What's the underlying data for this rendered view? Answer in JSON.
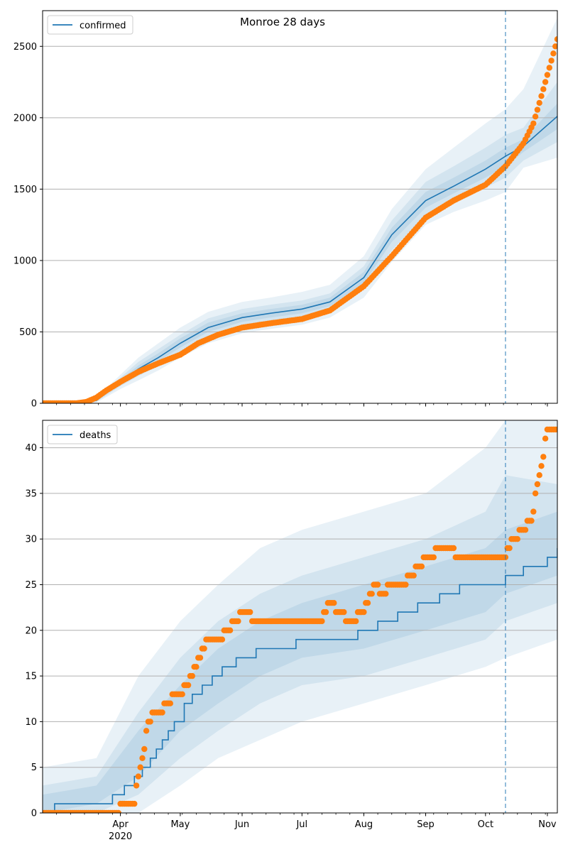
{
  "chart_data": [
    {
      "type": "line",
      "title": "Monroe 28 days",
      "xlabel": "",
      "ylabel": "",
      "x_range": [
        "2020-02-22",
        "2020-11-06"
      ],
      "ylim": [
        0,
        2750
      ],
      "y_ticks": [
        0,
        500,
        1000,
        1500,
        2000,
        2500
      ],
      "grid": "horizontal",
      "legend": "top-left",
      "vline_date": "2020-10-11",
      "series": [
        {
          "name": "confirmed",
          "kind": "line",
          "color": "#1f77b4",
          "x": [
            "2020-02-22",
            "2020-03-10",
            "2020-03-20",
            "2020-04-01",
            "2020-04-10",
            "2020-04-20",
            "2020-05-01",
            "2020-05-15",
            "2020-06-01",
            "2020-06-15",
            "2020-07-01",
            "2020-07-15",
            "2020-08-01",
            "2020-08-15",
            "2020-09-01",
            "2020-09-15",
            "2020-10-01",
            "2020-10-11",
            "2020-10-20",
            "2020-11-06"
          ],
          "values": [
            0,
            0,
            20,
            150,
            240,
            320,
            420,
            530,
            600,
            630,
            660,
            710,
            880,
            1180,
            1420,
            1520,
            1640,
            1730,
            1800,
            2010
          ]
        },
        {
          "name": "",
          "kind": "band",
          "color": "#1f77b4",
          "opacity": 0.1,
          "x": [
            "2020-02-22",
            "2020-03-10",
            "2020-03-20",
            "2020-04-01",
            "2020-04-10",
            "2020-04-20",
            "2020-05-01",
            "2020-05-15",
            "2020-06-01",
            "2020-06-15",
            "2020-07-01",
            "2020-07-15",
            "2020-08-01",
            "2020-08-15",
            "2020-09-01",
            "2020-09-15",
            "2020-10-01",
            "2020-10-11",
            "2020-10-20",
            "2020-11-06"
          ],
          "lower": [
            0,
            0,
            5,
            100,
            160,
            230,
            320,
            420,
            490,
            520,
            550,
            600,
            740,
            990,
            1250,
            1340,
            1420,
            1480,
            1650,
            1720
          ],
          "upper": [
            0,
            0,
            40,
            200,
            320,
            420,
            530,
            640,
            710,
            740,
            780,
            830,
            1030,
            1360,
            1640,
            1790,
            1960,
            2060,
            2200,
            2700
          ]
        },
        {
          "name": "",
          "kind": "band",
          "color": "#1f77b4",
          "opacity": 0.1,
          "x": [
            "2020-02-22",
            "2020-03-10",
            "2020-03-20",
            "2020-04-01",
            "2020-04-10",
            "2020-04-20",
            "2020-05-01",
            "2020-05-15",
            "2020-06-01",
            "2020-06-15",
            "2020-07-01",
            "2020-07-15",
            "2020-08-01",
            "2020-08-15",
            "2020-09-01",
            "2020-09-15",
            "2020-10-01",
            "2020-10-11",
            "2020-10-20",
            "2020-11-06"
          ],
          "lower": [
            0,
            0,
            10,
            120,
            190,
            265,
            360,
            465,
            540,
            570,
            600,
            650,
            800,
            1070,
            1320,
            1410,
            1510,
            1580,
            1700,
            1830
          ],
          "upper": [
            0,
            0,
            30,
            180,
            290,
            380,
            480,
            595,
            660,
            690,
            720,
            770,
            960,
            1280,
            1550,
            1660,
            1790,
            1880,
            1930,
            2250
          ]
        },
        {
          "name": "",
          "kind": "band",
          "color": "#1f77b4",
          "opacity": 0.1,
          "x": [
            "2020-02-22",
            "2020-03-10",
            "2020-03-20",
            "2020-04-01",
            "2020-04-10",
            "2020-04-20",
            "2020-05-01",
            "2020-05-15",
            "2020-06-01",
            "2020-06-15",
            "2020-07-01",
            "2020-07-15",
            "2020-08-01",
            "2020-08-15",
            "2020-09-01",
            "2020-09-15",
            "2020-10-01",
            "2020-10-11",
            "2020-10-20",
            "2020-11-06"
          ],
          "lower": [
            0,
            0,
            15,
            135,
            215,
            295,
            390,
            500,
            570,
            600,
            630,
            680,
            840,
            1130,
            1370,
            1470,
            1580,
            1660,
            1760,
            1920
          ],
          "upper": [
            0,
            0,
            25,
            165,
            265,
            350,
            455,
            565,
            630,
            660,
            690,
            740,
            920,
            1230,
            1480,
            1580,
            1700,
            1790,
            1850,
            2100
          ]
        },
        {
          "name": "",
          "kind": "scatter",
          "color": "#ff7f0e",
          "x": [
            "2020-02-22",
            "2020-03-01",
            "2020-03-10",
            "2020-03-15",
            "2020-03-20",
            "2020-03-25",
            "2020-04-01",
            "2020-04-10",
            "2020-04-20",
            "2020-05-01",
            "2020-05-10",
            "2020-05-20",
            "2020-06-01",
            "2020-06-15",
            "2020-07-01",
            "2020-07-15",
            "2020-08-01",
            "2020-08-15",
            "2020-09-01",
            "2020-09-15",
            "2020-10-01",
            "2020-10-11",
            "2020-10-20",
            "2020-10-25",
            "2020-10-30",
            "2020-11-06"
          ],
          "values": [
            0,
            0,
            0,
            10,
            40,
            90,
            150,
            220,
            280,
            340,
            420,
            480,
            530,
            560,
            590,
            650,
            820,
            1030,
            1300,
            1420,
            1530,
            1660,
            1820,
            1960,
            2200,
            2550
          ]
        }
      ]
    },
    {
      "type": "line",
      "title": "",
      "xlabel": "",
      "ylabel": "",
      "x_range": [
        "2020-02-22",
        "2020-11-06"
      ],
      "ylim": [
        0,
        43
      ],
      "y_ticks": [
        0,
        5,
        10,
        15,
        20,
        25,
        30,
        35,
        40
      ],
      "x_tick_labels": [
        "Apr",
        "May",
        "Jun",
        "Jul",
        "Aug",
        "Sep",
        "Oct",
        "Nov"
      ],
      "x_tick_dates": [
        "2020-04-01",
        "2020-05-01",
        "2020-06-01",
        "2020-07-01",
        "2020-08-01",
        "2020-09-01",
        "2020-10-01",
        "2020-11-01"
      ],
      "x_year_label": "2020",
      "grid": "horizontal",
      "legend": "top-left",
      "vline_date": "2020-10-11",
      "series": [
        {
          "name": "deaths",
          "kind": "step",
          "color": "#1f77b4",
          "x": [
            "2020-02-22",
            "2020-02-28",
            "2020-03-28",
            "2020-04-03",
            "2020-04-08",
            "2020-04-12",
            "2020-04-16",
            "2020-04-19",
            "2020-04-22",
            "2020-04-25",
            "2020-04-28",
            "2020-05-03",
            "2020-05-07",
            "2020-05-12",
            "2020-05-17",
            "2020-05-22",
            "2020-05-29",
            "2020-06-08",
            "2020-06-28",
            "2020-07-29",
            "2020-08-08",
            "2020-08-18",
            "2020-08-28",
            "2020-09-08",
            "2020-09-18",
            "2020-10-11",
            "2020-10-20",
            "2020-11-01",
            "2020-11-06"
          ],
          "values": [
            0,
            1,
            2,
            3,
            4,
            5,
            6,
            7,
            8,
            9,
            10,
            12,
            13,
            14,
            15,
            16,
            17,
            18,
            19,
            20,
            21,
            22,
            23,
            24,
            25,
            26,
            27,
            28,
            29
          ]
        },
        {
          "name": "",
          "kind": "band",
          "color": "#1f77b4",
          "opacity": 0.1,
          "x": [
            "2020-02-22",
            "2020-03-20",
            "2020-04-10",
            "2020-05-01",
            "2020-05-20",
            "2020-06-10",
            "2020-07-01",
            "2020-08-01",
            "2020-09-01",
            "2020-10-01",
            "2020-10-11",
            "2020-11-06"
          ],
          "lower": [
            0,
            0,
            0,
            3,
            6,
            8,
            10,
            12,
            14,
            16,
            17,
            19
          ],
          "upper": [
            5,
            6,
            15,
            21,
            25,
            29,
            31,
            33,
            35,
            40,
            43,
            44
          ]
        },
        {
          "name": "",
          "kind": "band",
          "color": "#1f77b4",
          "opacity": 0.1,
          "x": [
            "2020-02-22",
            "2020-03-20",
            "2020-04-10",
            "2020-05-01",
            "2020-05-20",
            "2020-06-10",
            "2020-07-01",
            "2020-08-01",
            "2020-09-01",
            "2020-10-01",
            "2020-10-11",
            "2020-11-06"
          ],
          "lower": [
            0,
            0,
            2,
            6,
            9,
            12,
            14,
            15,
            17,
            19,
            21,
            23
          ],
          "upper": [
            3,
            4,
            11,
            17,
            21,
            24,
            26,
            28,
            30,
            33,
            37,
            36
          ]
        },
        {
          "name": "",
          "kind": "band",
          "color": "#1f77b4",
          "opacity": 0.1,
          "x": [
            "2020-02-22",
            "2020-03-20",
            "2020-04-10",
            "2020-05-01",
            "2020-05-20",
            "2020-06-10",
            "2020-07-01",
            "2020-08-01",
            "2020-09-01",
            "2020-10-01",
            "2020-10-11",
            "2020-11-06"
          ],
          "lower": [
            0,
            1,
            4,
            9,
            12,
            15,
            17,
            18,
            20,
            22,
            24,
            26
          ],
          "upper": [
            2,
            3,
            9,
            14,
            18,
            21,
            23,
            25,
            27,
            29,
            31,
            33
          ]
        },
        {
          "name": "",
          "kind": "scatter",
          "color": "#ff7f0e",
          "x": [
            "2020-02-22",
            "2020-03-10",
            "2020-03-25",
            "2020-04-08",
            "2020-04-10",
            "2020-04-12",
            "2020-04-15",
            "2020-04-18",
            "2020-04-20",
            "2020-04-25",
            "2020-04-28",
            "2020-05-01",
            "2020-05-05",
            "2020-05-10",
            "2020-05-15",
            "2020-05-20",
            "2020-05-25",
            "2020-06-01",
            "2020-06-10",
            "2020-06-25",
            "2020-07-10",
            "2020-07-15",
            "2020-07-20",
            "2020-07-25",
            "2020-08-01",
            "2020-08-06",
            "2020-08-10",
            "2020-08-15",
            "2020-08-20",
            "2020-08-25",
            "2020-09-01",
            "2020-09-10",
            "2020-09-20",
            "2020-10-01",
            "2020-10-11",
            "2020-10-15",
            "2020-10-20",
            "2020-10-24",
            "2020-10-27",
            "2020-10-30",
            "2020-11-01"
          ],
          "values": [
            0,
            0,
            0,
            1,
            4,
            6,
            10,
            11,
            11,
            12,
            13,
            13,
            14,
            17,
            19,
            19,
            20,
            22,
            21,
            21,
            21,
            23,
            22,
            21,
            22,
            25,
            24,
            25,
            25,
            26,
            28,
            29,
            28,
            28,
            28,
            30,
            31,
            32,
            36,
            39,
            42
          ]
        }
      ]
    }
  ]
}
